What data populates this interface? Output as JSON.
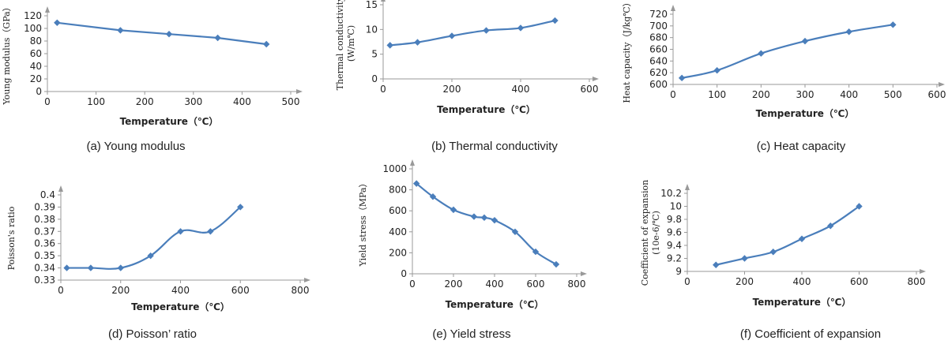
{
  "chart_data": [
    {
      "type": "line",
      "caption": "(a) Young modulus",
      "xlabel": "Temperature（℃）",
      "ylabel": "Young modulus（GPa）",
      "xlim": [
        0,
        500
      ],
      "ylim": [
        0,
        120
      ],
      "x_ticks": [
        "0",
        "100",
        "200",
        "300",
        "400",
        "500"
      ],
      "y_ticks": [
        "0",
        "20",
        "40",
        "60",
        "80",
        "100",
        "120"
      ],
      "x": [
        20,
        150,
        250,
        350,
        450
      ],
      "y": [
        109,
        97,
        91,
        85,
        75
      ],
      "smooth": false,
      "color": "#4a7ebb"
    },
    {
      "type": "line",
      "caption": "(b) Thermal conductivity",
      "xlabel": "Temperature（℃）",
      "ylabel_lines": [
        "Thermal conductivity",
        "(W/m℃)"
      ],
      "xlim": [
        0,
        600
      ],
      "ylim": [
        0,
        15
      ],
      "x_ticks": [
        "0",
        "200",
        "400",
        "600"
      ],
      "y_ticks": [
        "0",
        "5",
        "10",
        "15"
      ],
      "x": [
        20,
        100,
        200,
        300,
        400,
        500
      ],
      "y": [
        6.8,
        7.4,
        8.7,
        9.8,
        10.3,
        11.8
      ],
      "smooth": true,
      "color": "#4a7ebb"
    },
    {
      "type": "line",
      "caption": "(c) Heat capacity",
      "xlabel": "Temperature（℃）",
      "ylabel": "Heat capacity（J/kg℃）",
      "xlim": [
        0,
        600
      ],
      "ylim": [
        600,
        720
      ],
      "x_ticks": [
        "0",
        "100",
        "200",
        "300",
        "400",
        "500",
        "600"
      ],
      "y_ticks": [
        "600",
        "620",
        "640",
        "660",
        "680",
        "700",
        "720"
      ],
      "x": [
        20,
        100,
        200,
        300,
        400,
        500
      ],
      "y": [
        611,
        624,
        653,
        674,
        690,
        702
      ],
      "smooth": true,
      "color": "#4a7ebb"
    },
    {
      "type": "line",
      "caption": "(d) Poisson’ ratio",
      "xlabel": "Temperature（℃）",
      "ylabel": "Poisson's ratio",
      "xlim": [
        0,
        800
      ],
      "ylim": [
        0.33,
        0.4
      ],
      "x_ticks": [
        "0",
        "200",
        "400",
        "600",
        "800"
      ],
      "y_ticks": [
        "0.33",
        "0.34",
        "0.35",
        "0.36",
        "0.37",
        "0.38",
        "0.39",
        "0.4"
      ],
      "x": [
        20,
        100,
        200,
        300,
        400,
        500,
        600
      ],
      "y": [
        0.34,
        0.34,
        0.34,
        0.35,
        0.37,
        0.37,
        0.39
      ],
      "smooth": true,
      "color": "#4a7ebb"
    },
    {
      "type": "line",
      "caption": "(e) Yield stress",
      "xlabel": "Temperature（℃）",
      "ylabel": "Yield stress（MPa）",
      "xlim": [
        0,
        800
      ],
      "ylim": [
        0,
        1000
      ],
      "x_ticks": [
        "0",
        "200",
        "400",
        "600",
        "800"
      ],
      "y_ticks": [
        "0",
        "200",
        "400",
        "600",
        "800",
        "1000"
      ],
      "x": [
        20,
        100,
        200,
        300,
        350,
        400,
        500,
        600,
        700
      ],
      "y": [
        860,
        735,
        610,
        545,
        535,
        510,
        400,
        210,
        90
      ],
      "smooth": true,
      "color": "#4a7ebb"
    },
    {
      "type": "line",
      "caption": "(f) Coefficient of expansion",
      "xlabel": "Temperature（℃）",
      "ylabel_lines": [
        "Coefficient of expansion",
        "(10e-6/℃)"
      ],
      "xlim": [
        0,
        800
      ],
      "ylim": [
        9,
        10.2
      ],
      "x_ticks": [
        "0",
        "200",
        "400",
        "600",
        "800"
      ],
      "y_ticks": [
        "9",
        "9.2",
        "9.4",
        "9.6",
        "9.8",
        "10",
        "10.2"
      ],
      "x": [
        100,
        200,
        300,
        400,
        500,
        600
      ],
      "y": [
        9.1,
        9.2,
        9.3,
        9.5,
        9.7,
        10.0
      ],
      "smooth": true,
      "color": "#4a7ebb"
    }
  ]
}
